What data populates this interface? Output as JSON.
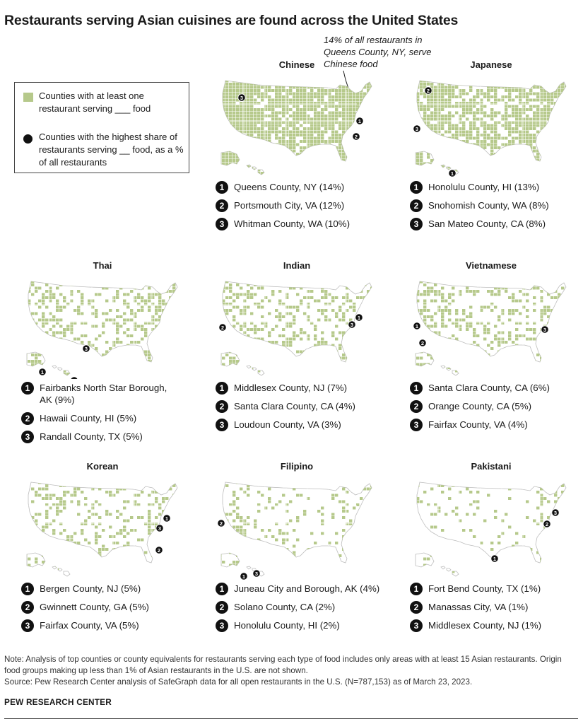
{
  "title": "Restaurants serving Asian cuisines are found across the United States",
  "legend": {
    "fill_label": "Counties with at least one restaurant serving ___ food",
    "dot_label": "Counties with the highest share of restaurants serving __ food, as a % of all restaurants",
    "fill_color": "#b6c98b",
    "dot_color": "#111111"
  },
  "annotation": "14% of all restaurants in Queens County, NY, serve Chinese food",
  "panels": [
    {
      "title": "Chinese",
      "coverage": 0.85,
      "ranks": [
        {
          "n": "1",
          "text": "Queens County, NY (14%)"
        },
        {
          "n": "2",
          "text": "Portsmouth City, VA (12%)"
        },
        {
          "n": "3",
          "text": "Whitman County, WA (10%)"
        }
      ]
    },
    {
      "title": "Japanese",
      "coverage": 0.7,
      "ranks": [
        {
          "n": "1",
          "text": "Honolulu County, HI (13%)"
        },
        {
          "n": "2",
          "text": "Snohomish County, WA (8%)"
        },
        {
          "n": "3",
          "text": "San Mateo County, CA (8%)"
        }
      ]
    },
    {
      "title": "Thai",
      "coverage": 0.35,
      "ranks": [
        {
          "n": "1",
          "text": "Fairbanks North Star Borough, AK (9%)"
        },
        {
          "n": "2",
          "text": "Hawaii County, HI (5%)"
        },
        {
          "n": "3",
          "text": "Randall County, TX (5%)"
        }
      ]
    },
    {
      "title": "Indian",
      "coverage": 0.3,
      "ranks": [
        {
          "n": "1",
          "text": "Middlesex County, NJ (7%)"
        },
        {
          "n": "2",
          "text": "Santa Clara County, CA (4%)"
        },
        {
          "n": "3",
          "text": "Loudoun County, VA (3%)"
        }
      ]
    },
    {
      "title": "Vietnamese",
      "coverage": 0.28,
      "ranks": [
        {
          "n": "1",
          "text": "Santa Clara County, CA (6%)"
        },
        {
          "n": "2",
          "text": "Orange County, CA (5%)"
        },
        {
          "n": "3",
          "text": "Fairfax County, VA (4%)"
        }
      ]
    },
    {
      "title": "Korean",
      "coverage": 0.22,
      "ranks": [
        {
          "n": "1",
          "text": "Bergen County, NJ (5%)"
        },
        {
          "n": "2",
          "text": "Gwinnett County, GA (5%)"
        },
        {
          "n": "3",
          "text": "Fairfax County, VA (5%)"
        }
      ]
    },
    {
      "title": "Filipino",
      "coverage": 0.15,
      "ranks": [
        {
          "n": "1",
          "text": "Juneau City and Borough, AK (4%)"
        },
        {
          "n": "2",
          "text": "Solano County, CA (2%)"
        },
        {
          "n": "3",
          "text": "Honolulu County, HI (2%)"
        }
      ]
    },
    {
      "title": "Pakistani",
      "coverage": 0.1,
      "ranks": [
        {
          "n": "1",
          "text": "Fort Bend County, TX (1%)"
        },
        {
          "n": "2",
          "text": "Manassas City, VA (1%)"
        },
        {
          "n": "3",
          "text": "Middlesex County, NJ (1%)"
        }
      ]
    }
  ],
  "note": "Note: Analysis of top counties or county equivalents for restaurants serving each type of food includes only areas with at least 15 Asian restaurants. Origin food groups making up less than 1% of Asian restaurants in the U.S. are not shown.",
  "source": "Source: Pew Research Center analysis of SafeGraph data for all open restaurants in the U.S. (N=787,153) as of March 23, 2023.",
  "brand": "PEW RESEARCH CENTER"
}
